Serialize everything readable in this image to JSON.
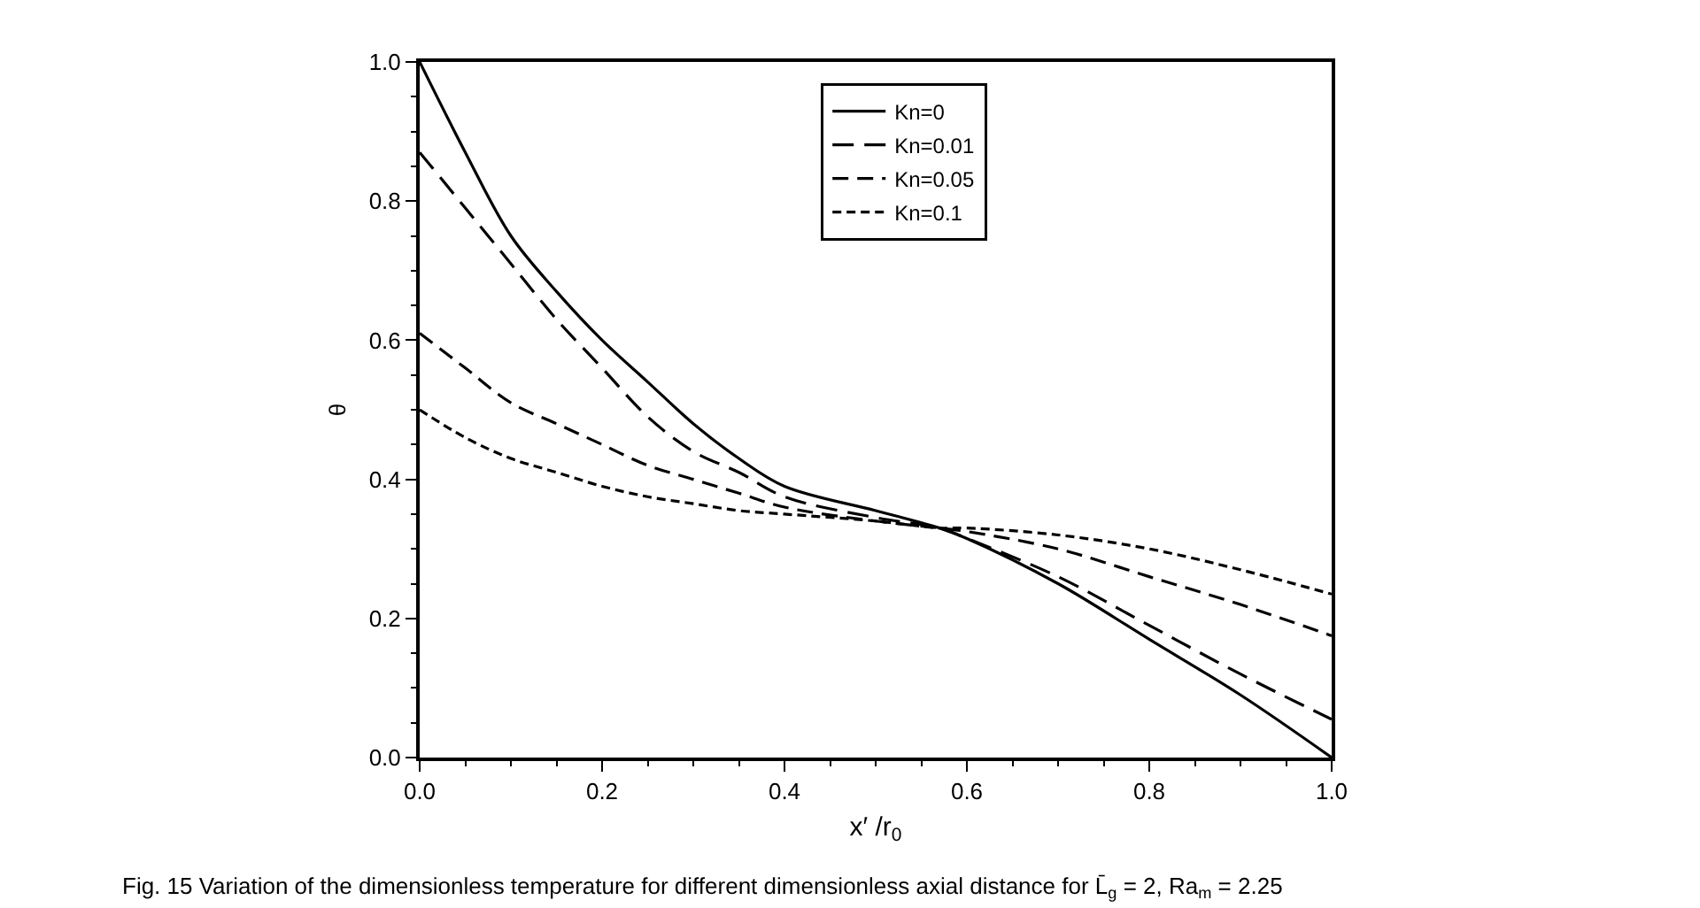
{
  "chart_data": {
    "type": "line",
    "xlabel": "x′ /r$_{0}$",
    "ylabel": "θ",
    "annotations": [
      "Fig. 15 Variation of the dimensionless temperature for different dimensionless axial distance for L̄$_{g}$ = 2, Ra$_{m}$ = 2.25"
    ],
    "x": [
      0,
      0.05,
      0.1,
      0.15,
      0.2,
      0.25,
      0.3,
      0.35,
      0.4,
      0.5,
      0.57,
      0.6,
      0.7,
      0.8,
      0.9,
      1.0
    ],
    "series": [
      {
        "name": "Kn=0",
        "color": "#000000",
        "line_style": "solid",
        "values": [
          1.0,
          0.87,
          0.75,
          0.67,
          0.6,
          0.54,
          0.48,
          0.43,
          0.39,
          0.355,
          0.33,
          0.315,
          0.25,
          0.17,
          0.09,
          0.0
        ]
      },
      {
        "name": "Kn=0.01",
        "color": "#000000",
        "line_style": "dashed",
        "values": [
          0.87,
          0.79,
          0.71,
          0.63,
          0.56,
          0.49,
          0.44,
          0.41,
          0.375,
          0.345,
          0.33,
          0.315,
          0.26,
          0.19,
          0.12,
          0.055
        ]
      },
      {
        "name": "Kn=0.05",
        "color": "#000000",
        "line_style": "dashed",
        "values": [
          0.61,
          0.56,
          0.51,
          0.48,
          0.45,
          0.42,
          0.4,
          0.38,
          0.36,
          0.34,
          0.33,
          0.325,
          0.3,
          0.26,
          0.22,
          0.175
        ]
      },
      {
        "name": "Kn=0.1",
        "color": "#000000",
        "line_style": "dashed",
        "values": [
          0.5,
          0.46,
          0.43,
          0.41,
          0.39,
          0.375,
          0.365,
          0.355,
          0.35,
          0.34,
          0.33,
          0.33,
          0.32,
          0.3,
          0.27,
          0.235
        ]
      }
    ],
    "xlim": [
      0.0,
      1.0
    ],
    "xticks": [
      {
        "value": 0,
        "label": "0.0"
      },
      0.2,
      0.4,
      0.6,
      0.8,
      {
        "value": 1,
        "label": "1.0"
      }
    ],
    "ylim": [
      0.0,
      1.0
    ],
    "yticks": [
      {
        "value": 0,
        "label": "0.0"
      },
      0.2,
      0.4,
      0.6,
      0.8,
      {
        "value": 1,
        "label": "1.0"
      }
    ],
    "legend": "top right",
    "marker": "none"
  }
}
